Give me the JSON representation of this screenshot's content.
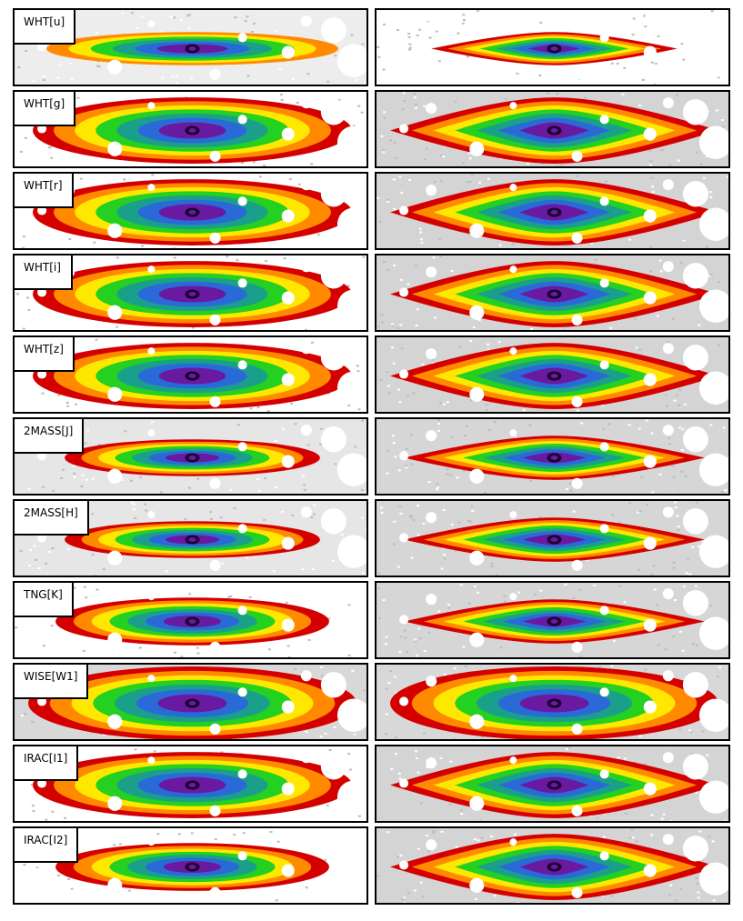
{
  "rows": [
    {
      "band": "WHT[u]",
      "left": {
        "style": "faint"
      },
      "right": {
        "style": "thin"
      }
    },
    {
      "band": "WHT[g]",
      "left": {
        "style": "full"
      },
      "right": {
        "style": "diamond"
      }
    },
    {
      "band": "WHT[r]",
      "left": {
        "style": "full"
      },
      "right": {
        "style": "diamond"
      }
    },
    {
      "band": "WHT[i]",
      "left": {
        "style": "full"
      },
      "right": {
        "style": "diamond"
      }
    },
    {
      "band": "WHT[z]",
      "left": {
        "style": "full"
      },
      "right": {
        "style": "diamond"
      }
    },
    {
      "band": "2MASS[J]",
      "left": {
        "style": "noisy"
      },
      "right": {
        "style": "slim"
      }
    },
    {
      "band": "2MASS[H]",
      "left": {
        "style": "noisy"
      },
      "right": {
        "style": "slim"
      }
    },
    {
      "band": "TNG[K]",
      "left": {
        "style": "medium"
      },
      "right": {
        "style": "slim"
      }
    },
    {
      "band": "WISE[W1]",
      "left": {
        "style": "broad"
      },
      "right": {
        "style": "broad"
      }
    },
    {
      "band": "IRAC[I1]",
      "left": {
        "style": "full"
      },
      "right": {
        "style": "diamond"
      }
    },
    {
      "band": "IRAC[I2]",
      "left": {
        "style": "medium"
      },
      "right": {
        "style": "diamond"
      }
    }
  ],
  "colors": {
    "outer": "#d40000",
    "orange": "#ff8a00",
    "yellow": "#ffe800",
    "green": "#24d020",
    "teal": "#1aa08a",
    "blue": "#2a6ad8",
    "purple": "#6a1aa0",
    "core": "#1a0030",
    "mask": "#ffffff",
    "background": "#c8c8c8"
  }
}
